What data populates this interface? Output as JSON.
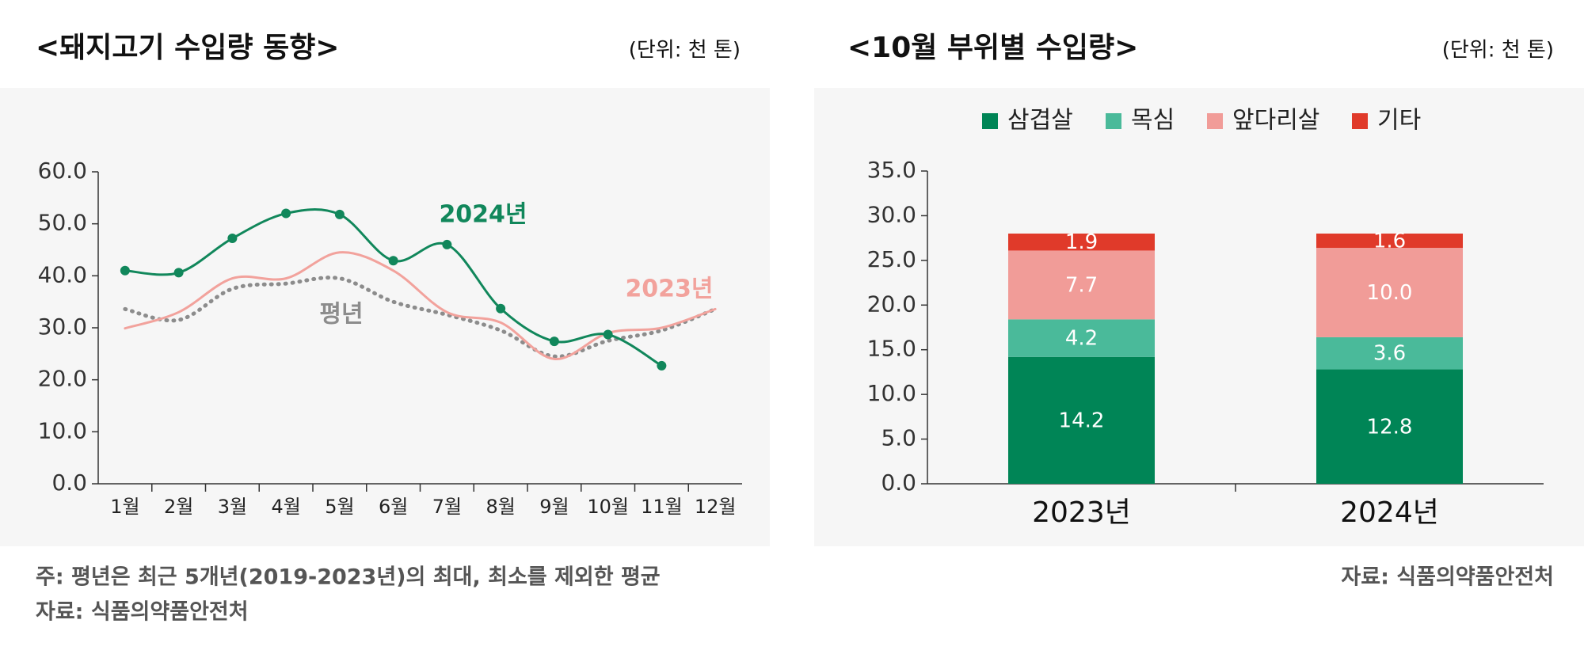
{
  "header": {
    "note": "주: 평년은 최근 5개년(2019-2023년)의 최대, 최소를 제외한 평균",
    "source_left": "자료: 식품의약품안전처",
    "source_right": "자료: 식품의약품안전처"
  },
  "chart_data": [
    {
      "type": "line",
      "title": "<돼지고기 수입량 동향>",
      "unit": "(단위: 천 톤)",
      "categories": [
        "1월",
        "2월",
        "3월",
        "4월",
        "5월",
        "6월",
        "7월",
        "8월",
        "9월",
        "10월",
        "11월",
        "12월"
      ],
      "series": [
        {
          "name": "2024년",
          "color": "#11875b",
          "style": "solid",
          "markers": true,
          "values": [
            41.0,
            40.6,
            47.2,
            52.0,
            51.8,
            42.9,
            46.0,
            33.7,
            27.4,
            28.7,
            22.7,
            null
          ]
        },
        {
          "name": "2023년",
          "color": "#f2a29c",
          "style": "solid",
          "markers": false,
          "values": [
            29.9,
            33.0,
            39.5,
            39.5,
            44.5,
            41.0,
            33.0,
            31.0,
            24.0,
            29.0,
            30.0,
            33.6
          ]
        },
        {
          "name": "평년",
          "color": "#8c8c8c",
          "style": "dotted",
          "markers": false,
          "values": [
            33.6,
            31.5,
            37.5,
            38.5,
            39.5,
            35.0,
            32.5,
            29.5,
            24.5,
            27.5,
            29.5,
            33.6
          ]
        }
      ],
      "ylim": [
        0,
        60
      ],
      "yticks": [
        {
          "value": 0,
          "label": "0.0"
        },
        {
          "value": 10,
          "label": "10.0"
        },
        {
          "value": 20,
          "label": "20.0"
        },
        {
          "value": 30,
          "label": "30.0"
        },
        {
          "value": 40,
          "label": "40.0"
        },
        {
          "value": 50,
          "label": "50.0"
        },
        {
          "value": 60,
          "label": "60.0"
        }
      ]
    },
    {
      "type": "stacked_bar",
      "title": "<10월 부위별 수입량>",
      "unit": "(단위: 천 톤)",
      "categories": [
        "2023년",
        "2024년"
      ],
      "series": [
        {
          "name": "삼겹살",
          "color": "#008556",
          "values": [
            14.2,
            12.8
          ]
        },
        {
          "name": "목심",
          "color": "#4aba9a",
          "values": [
            4.2,
            3.6
          ]
        },
        {
          "name": "앞다리살",
          "color": "#f19c98",
          "values": [
            7.7,
            10.0
          ],
          "value_labels": [
            "7.7",
            "10.0"
          ]
        },
        {
          "name": "기타",
          "color": "#e03a2a",
          "values": [
            1.9,
            1.6
          ]
        }
      ],
      "ylim": [
        0,
        35
      ],
      "yticks": [
        {
          "value": 0,
          "label": "0.0"
        },
        {
          "value": 5,
          "label": "5.0"
        },
        {
          "value": 10,
          "label": "10.0"
        },
        {
          "value": 15,
          "label": "15.0"
        },
        {
          "value": 20,
          "label": "20.0"
        },
        {
          "value": 25,
          "label": "25.0"
        },
        {
          "value": 30,
          "label": "30.0"
        },
        {
          "value": 35,
          "label": "35.0"
        }
      ]
    }
  ]
}
